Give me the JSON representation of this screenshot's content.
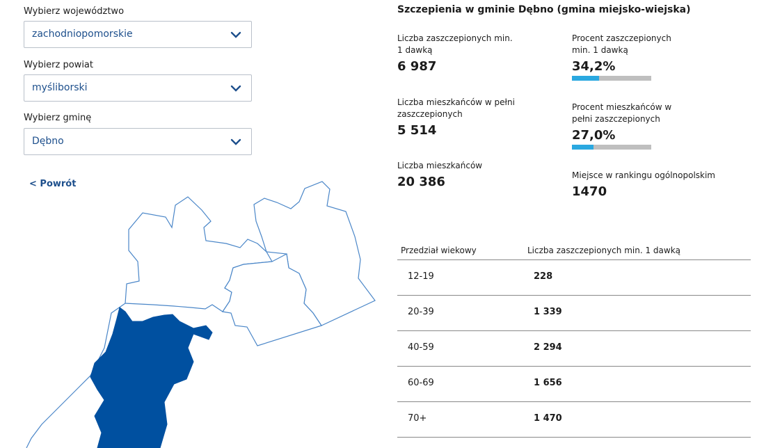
{
  "filters": {
    "voivodeship_label": "Wybierz województwo",
    "voivodeship_value": "zachodniopomorskie",
    "county_label": "Wybierz powiat",
    "county_value": "myśliborski",
    "commune_label": "Wybierz gminę",
    "commune_value": "Dębno",
    "back_link": "< Powrót"
  },
  "stats": {
    "title": "Szczepienia w gminie Dębno (gmina miejsko-wiejska)",
    "vaccinated_label": "Liczba zaszczepionych min. 1 dawką",
    "vaccinated_value": "6 987",
    "vaccinated_pct_label": "Procent zaszczepionych min. 1 dawką",
    "vaccinated_pct_value": "34,2%",
    "vaccinated_pct_fraction": 0.342,
    "full_label": "Liczba mieszkańców w pełni zaszczepionych",
    "full_value": "5 514",
    "full_pct_label": "Procent mieszkańców w pełni zaszczepionych",
    "full_pct_value": "27,0%",
    "full_pct_fraction": 0.27,
    "population_label": "Liczba mieszkańców",
    "population_value": "20 386",
    "rank_label": "Miejsce w rankingu ogólnopolskim",
    "rank_value": "1470"
  },
  "age_table": {
    "headers": [
      "Przedział wiekowy",
      "Liczba zaszczepionych min. 1 dawką"
    ],
    "rows": [
      {
        "age": "12-19",
        "count": "228"
      },
      {
        "age": "20-39",
        "count": "1 339"
      },
      {
        "age": "40-59",
        "count": "2 294"
      },
      {
        "age": "60-69",
        "count": "1 656"
      },
      {
        "age": "70+",
        "count": "1 470"
      }
    ]
  },
  "colors": {
    "accent": "#1d4f8c",
    "map_selected": "#0050a0",
    "bar_fill": "#2aa8e0",
    "bar_track": "#bfbfbf"
  },
  "icons": {
    "select_arrow": "chevron-down-icon"
  }
}
